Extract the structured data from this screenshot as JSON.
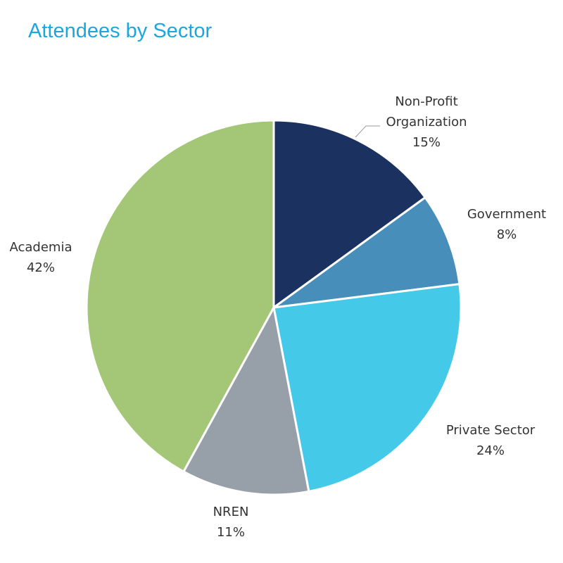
{
  "chart_data": {
    "type": "pie",
    "title": "Attendees by Sector",
    "slices": [
      {
        "label_lines": [
          "Non-Profit",
          "Organization"
        ],
        "pct_label": "15%",
        "value": 15,
        "color": "#1b3160"
      },
      {
        "label_lines": [
          "Government"
        ],
        "pct_label": "8%",
        "value": 8,
        "color": "#478fba"
      },
      {
        "label_lines": [
          "Private Sector"
        ],
        "pct_label": "24%",
        "value": 24,
        "color": "#45c9e8"
      },
      {
        "label_lines": [
          "NREN"
        ],
        "pct_label": "11%",
        "value": 11,
        "color": "#979fa8"
      },
      {
        "label_lines": [
          "Academia"
        ],
        "pct_label": "42%",
        "value": 42,
        "color": "#a3c777"
      }
    ]
  }
}
